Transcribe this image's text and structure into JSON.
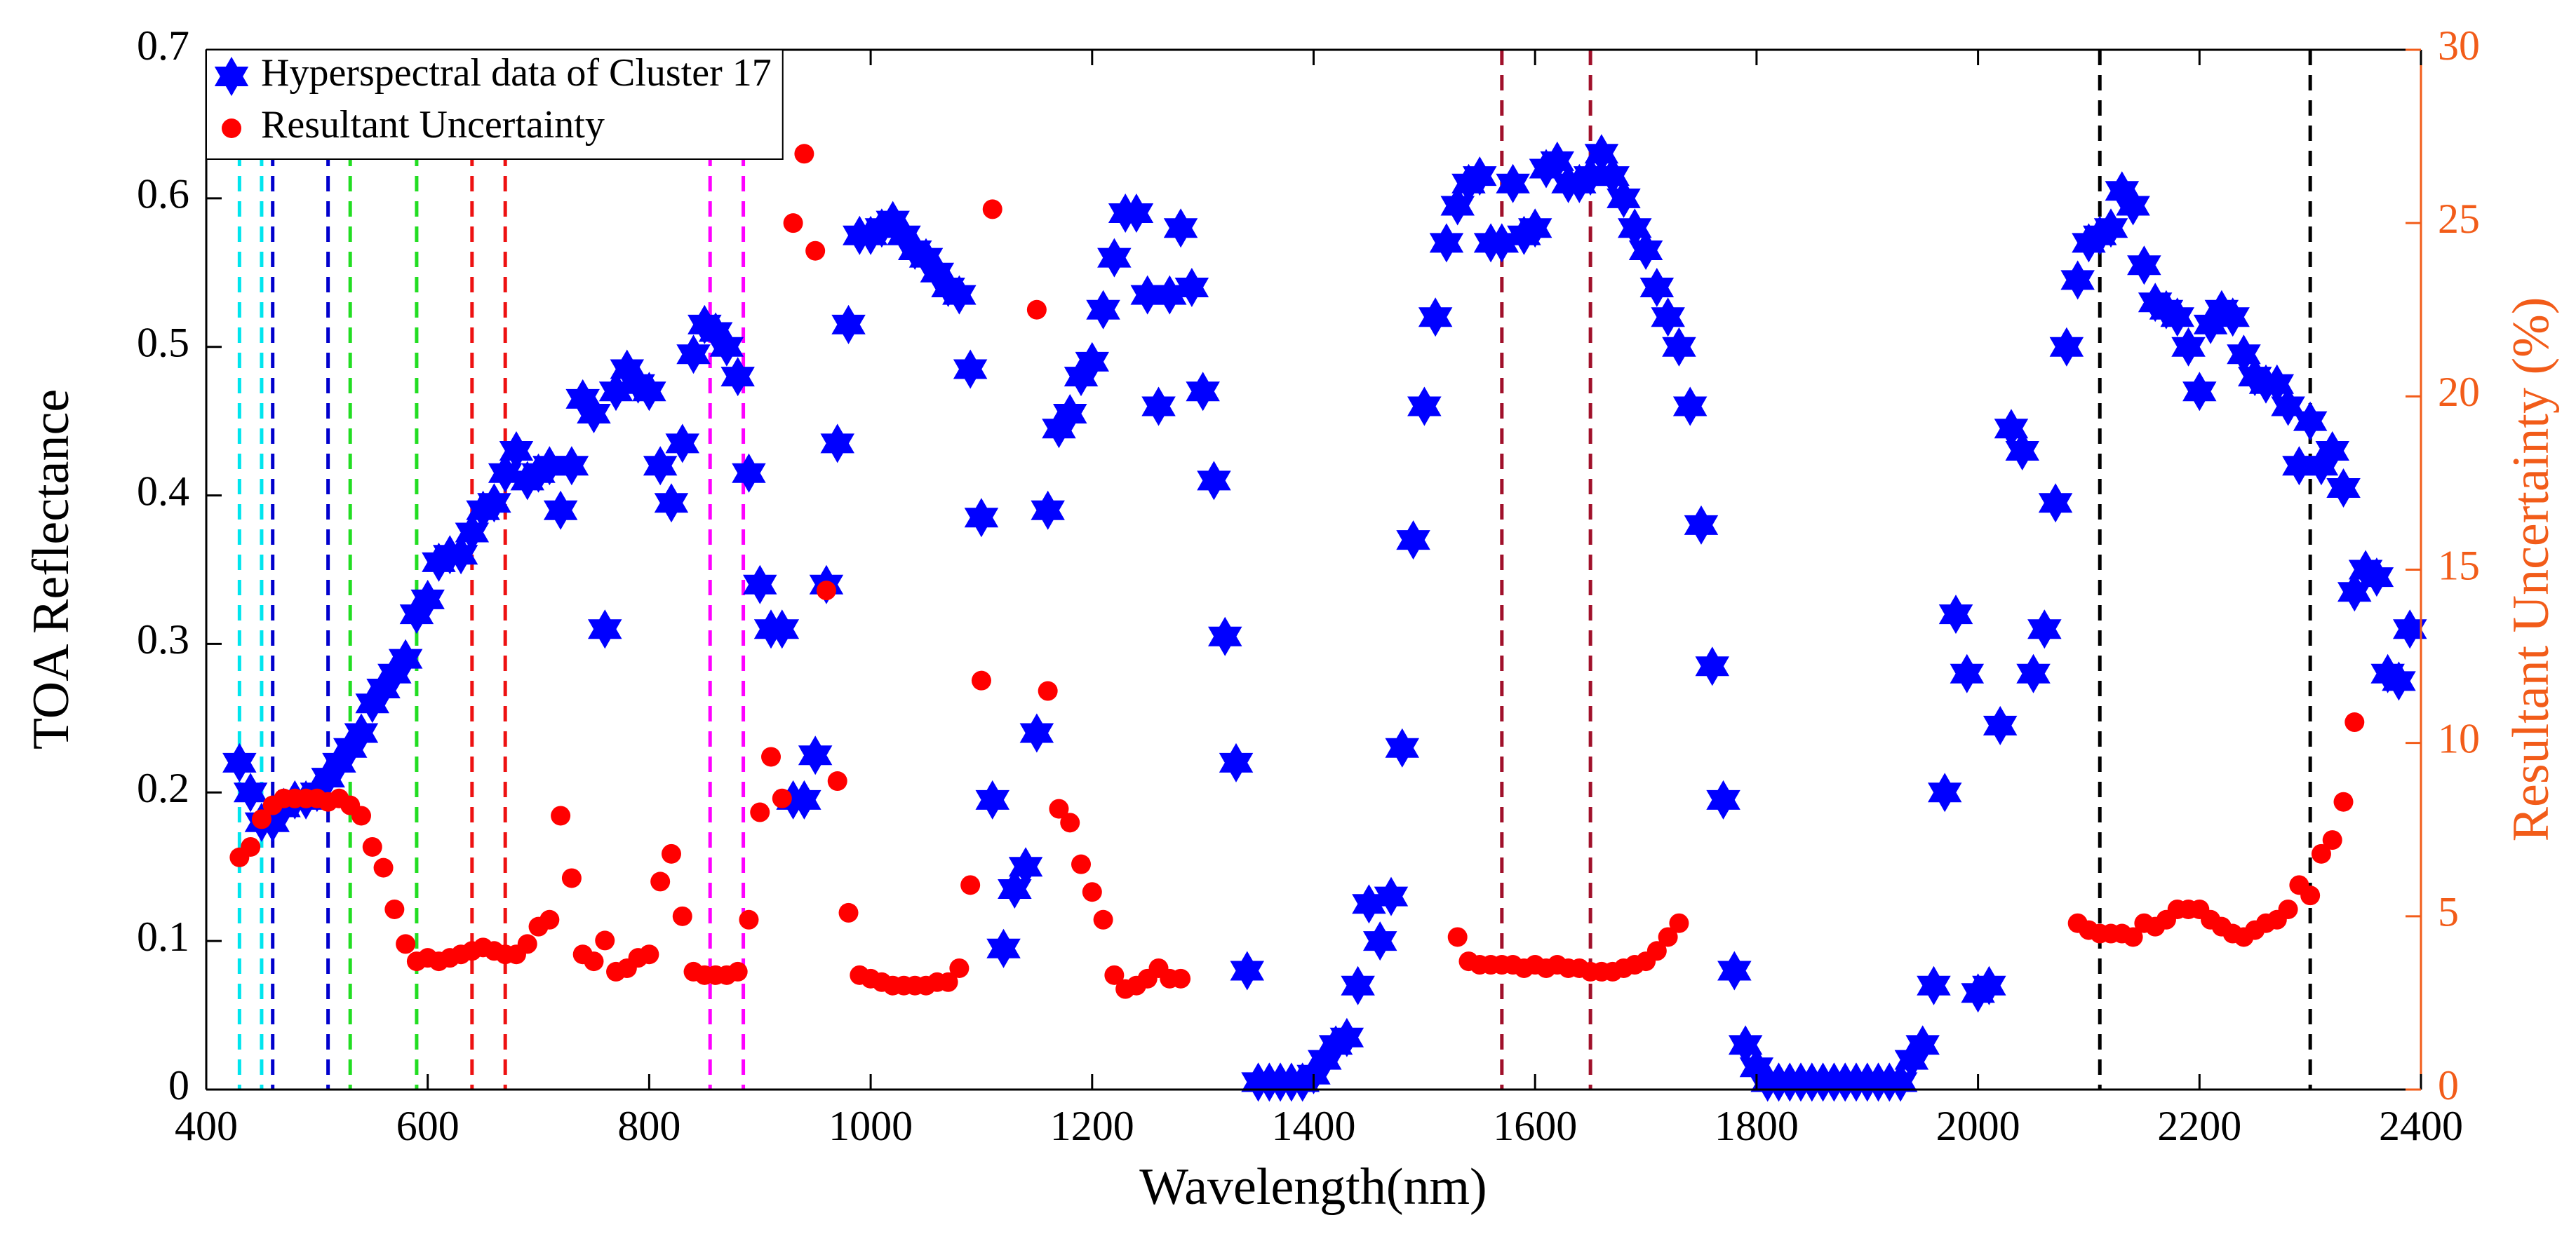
{
  "chart_data": {
    "type": "scatter",
    "x_label": "Wavelength(nm)",
    "y_label": "TOA Reflectance",
    "y2_label": "Resultant Uncertainty (%)",
    "xlim": [
      400,
      2400
    ],
    "xticks": [
      400,
      600,
      800,
      1000,
      1200,
      1400,
      1600,
      1800,
      2000,
      2200,
      2400
    ],
    "ylim": [
      0,
      0.7
    ],
    "yticks": [
      0,
      0.1,
      0.2,
      0.3,
      0.4,
      0.5,
      0.6,
      0.7
    ],
    "y2lim": [
      0,
      30
    ],
    "y2ticks": [
      0,
      5,
      10,
      15,
      20,
      25,
      30
    ],
    "y2_color": "#f25c19",
    "legend": "upper left",
    "reference_lines": [
      {
        "x": 430,
        "color": "#00e5ee"
      },
      {
        "x": 450,
        "color": "#00e5ee"
      },
      {
        "x": 460,
        "color": "#0000cd"
      },
      {
        "x": 510,
        "color": "#0000cd"
      },
      {
        "x": 530,
        "color": "#22dd22"
      },
      {
        "x": 590,
        "color": "#22dd22"
      },
      {
        "x": 640,
        "color": "#ee1111"
      },
      {
        "x": 670,
        "color": "#ee1111"
      },
      {
        "x": 855,
        "color": "#ff00ff"
      },
      {
        "x": 885,
        "color": "#ff00ff"
      },
      {
        "x": 1570,
        "color": "#a0102a"
      },
      {
        "x": 1650,
        "color": "#a0102a"
      },
      {
        "x": 2110,
        "color": "#000000"
      },
      {
        "x": 2300,
        "color": "#000000"
      }
    ],
    "series": [
      {
        "name": "Hyperspectral data of Cluster 17",
        "color": "#0000ff",
        "marker": "hexagram",
        "x": [
          430,
          440,
          450,
          460,
          470,
          480,
          490,
          500,
          510,
          520,
          530,
          540,
          550,
          560,
          570,
          580,
          590,
          600,
          610,
          620,
          630,
          640,
          650,
          660,
          670,
          680,
          690,
          700,
          710,
          720,
          730,
          740,
          750,
          760,
          770,
          780,
          790,
          800,
          810,
          820,
          830,
          840,
          850,
          860,
          870,
          880,
          890,
          900,
          910,
          920,
          930,
          940,
          950,
          960,
          970,
          980,
          990,
          1000,
          1010,
          1020,
          1030,
          1040,
          1050,
          1060,
          1070,
          1080,
          1090,
          1100,
          1110,
          1120,
          1130,
          1140,
          1150,
          1160,
          1170,
          1180,
          1190,
          1200,
          1210,
          1220,
          1230,
          1240,
          1250,
          1260,
          1270,
          1280,
          1290,
          1300,
          1310,
          1320,
          1330,
          1340,
          1350,
          1360,
          1370,
          1380,
          1390,
          1400,
          1410,
          1420,
          1430,
          1440,
          1450,
          1460,
          1470,
          1480,
          1490,
          1500,
          1510,
          1520,
          1530,
          1540,
          1550,
          1560,
          1570,
          1580,
          1590,
          1600,
          1610,
          1620,
          1630,
          1640,
          1650,
          1660,
          1670,
          1680,
          1690,
          1700,
          1710,
          1720,
          1730,
          1740,
          1750,
          1760,
          1770,
          1780,
          1790,
          1800,
          1810,
          1820,
          1830,
          1840,
          1850,
          1860,
          1870,
          1880,
          1890,
          1900,
          1910,
          1920,
          1930,
          1940,
          1950,
          1960,
          1970,
          1980,
          1990,
          2000,
          2010,
          2020,
          2030,
          2040,
          2050,
          2060,
          2070,
          2080,
          2090,
          2100,
          2110,
          2120,
          2130,
          2140,
          2150,
          2160,
          2170,
          2180,
          2190,
          2200,
          2210,
          2220,
          2230,
          2240,
          2250,
          2260,
          2270,
          2280,
          2290,
          2300,
          2310,
          2320,
          2330,
          2340,
          2350,
          2360,
          2370,
          2380,
          2390
        ],
        "values": [
          0.22,
          0.2,
          0.18,
          0.18,
          0.19,
          0.195,
          0.195,
          0.2,
          0.21,
          0.22,
          0.23,
          0.24,
          0.26,
          0.27,
          0.28,
          0.29,
          0.32,
          0.33,
          0.355,
          0.36,
          0.36,
          0.375,
          0.39,
          0.395,
          0.415,
          0.43,
          0.41,
          0.415,
          0.42,
          0.39,
          0.42,
          0.465,
          0.455,
          0.31,
          0.47,
          0.485,
          0.475,
          0.47,
          0.42,
          0.395,
          0.435,
          0.495,
          0.515,
          0.51,
          0.5,
          0.48,
          0.415,
          0.34,
          0.31,
          0.31,
          0.195,
          0.195,
          0.225,
          0.34,
          0.435,
          0.515,
          0.575,
          0.575,
          0.58,
          0.585,
          0.575,
          0.565,
          0.56,
          0.55,
          0.54,
          0.535,
          0.485,
          0.385,
          0.195,
          0.095,
          0.135,
          0.15,
          0.24,
          0.39,
          0.445,
          0.455,
          0.48,
          0.49,
          0.525,
          0.56,
          0.59,
          0.59,
          0.535,
          0.46,
          0.535,
          0.58,
          0.54,
          0.47,
          0.41,
          0.305,
          0.22,
          0.08,
          0.005,
          0.005,
          0.005,
          0.005,
          0.005,
          0.01,
          0.02,
          0.03,
          0.035,
          0.07,
          0.125,
          0.1,
          0.13,
          0.23,
          0.37,
          0.46,
          0.52,
          0.57,
          0.595,
          0.61,
          0.615,
          0.57,
          0.57,
          0.61,
          0.575,
          0.58,
          0.62,
          0.625,
          0.61,
          0.61,
          0.615,
          0.63,
          0.615,
          0.6,
          0.58,
          0.565,
          0.54,
          0.52,
          0.5,
          0.46,
          0.38,
          0.285,
          0.195,
          0.08,
          0.03,
          0.015,
          0.005,
          0.005,
          0.005,
          0.005,
          0.005,
          0.005,
          0.005,
          0.005,
          0.005,
          0.005,
          0.005,
          0.005,
          0.005,
          0.02,
          0.03,
          0.07,
          0.2,
          0.32,
          0.28,
          0.065,
          0.07,
          0.245,
          0.445,
          0.43,
          0.28,
          0.31,
          0.395,
          0.5,
          0.545,
          0.57,
          0.575,
          0.58,
          0.605,
          0.595,
          0.555,
          0.53,
          0.525,
          0.52,
          0.5,
          0.47,
          0.515,
          0.525,
          0.52,
          0.495,
          0.48,
          0.475,
          0.475,
          0.46,
          0.42,
          0.45,
          0.42,
          0.43,
          0.405,
          0.335,
          0.35,
          0.345,
          0.28,
          0.275,
          0.31
        ]
      },
      {
        "name": "Resultant Uncertainty",
        "color": "#ff0000",
        "marker": "circle",
        "axis": "y2",
        "x": [
          430,
          440,
          450,
          460,
          470,
          480,
          490,
          500,
          510,
          520,
          530,
          540,
          550,
          560,
          570,
          580,
          590,
          600,
          610,
          620,
          630,
          640,
          650,
          660,
          670,
          680,
          690,
          700,
          710,
          720,
          730,
          740,
          750,
          760,
          770,
          780,
          790,
          800,
          810,
          820,
          830,
          840,
          850,
          860,
          870,
          880,
          890,
          900,
          910,
          920,
          930,
          940,
          950,
          960,
          970,
          980,
          990,
          1000,
          1010,
          1020,
          1030,
          1040,
          1050,
          1060,
          1070,
          1080,
          1090,
          1100,
          1110,
          1150,
          1160,
          1170,
          1180,
          1190,
          1200,
          1210,
          1220,
          1230,
          1240,
          1250,
          1260,
          1270,
          1280,
          1530,
          1540,
          1550,
          1560,
          1570,
          1580,
          1590,
          1600,
          1610,
          1620,
          1630,
          1640,
          1650,
          1660,
          1670,
          1680,
          1690,
          1700,
          1710,
          1720,
          1730,
          2090,
          2100,
          2110,
          2120,
          2130,
          2140,
          2150,
          2160,
          2170,
          2180,
          2190,
          2200,
          2210,
          2220,
          2230,
          2240,
          2250,
          2260,
          2270,
          2280,
          2290,
          2300,
          2310,
          2320,
          2330,
          2340
        ],
        "values": [
          6.7,
          7.0,
          7.8,
          8.2,
          8.4,
          8.4,
          8.4,
          8.4,
          8.3,
          8.4,
          8.2,
          7.9,
          7.0,
          6.4,
          5.2,
          4.2,
          3.7,
          3.8,
          3.7,
          3.8,
          3.9,
          4.0,
          4.1,
          4.0,
          3.9,
          3.9,
          4.2,
          4.7,
          4.9,
          7.9,
          6.1,
          3.9,
          3.7,
          4.3,
          3.4,
          3.5,
          3.8,
          3.9,
          6.0,
          6.8,
          5.0,
          3.4,
          3.3,
          3.3,
          3.3,
          3.4,
          4.9,
          8.0,
          9.6,
          8.4,
          25,
          27,
          24.2,
          14.4,
          8.9,
          5.1,
          3.3,
          3.2,
          3.1,
          3.0,
          3.0,
          3.0,
          3.0,
          3.1,
          3.1,
          3.5,
          5.9,
          11.8,
          25.4,
          22.5,
          11.5,
          8.1,
          7.7,
          6.5,
          5.7,
          4.9,
          3.3,
          2.9,
          3.0,
          3.2,
          3.5,
          3.2,
          3.2,
          4.4,
          3.7,
          3.6,
          3.6,
          3.6,
          3.6,
          3.5,
          3.6,
          3.5,
          3.6,
          3.5,
          3.5,
          3.4,
          3.4,
          3.4,
          3.5,
          3.6,
          3.7,
          4.0,
          4.4,
          4.8,
          4.8,
          4.6,
          4.5,
          4.5,
          4.5,
          4.4,
          4.8,
          4.7,
          4.9,
          5.2,
          5.2,
          5.2,
          4.9,
          4.7,
          4.5,
          4.4,
          4.6,
          4.8,
          4.9,
          5.2,
          5.9,
          5.6,
          6.8,
          7.2,
          8.3,
          10.6
        ]
      }
    ]
  }
}
